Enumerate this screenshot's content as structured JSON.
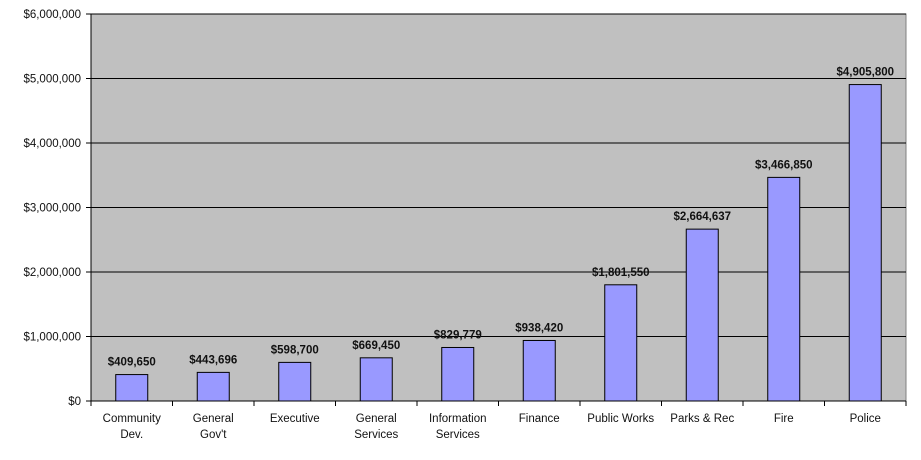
{
  "chart_data": {
    "type": "bar",
    "categories": [
      [
        "Community",
        "Dev."
      ],
      [
        "General",
        "Gov't"
      ],
      [
        "Executive"
      ],
      [
        "General",
        "Services"
      ],
      [
        "Information",
        "Services"
      ],
      [
        "Finance"
      ],
      [
        "Public Works"
      ],
      [
        "Parks & Rec"
      ],
      [
        "Fire"
      ],
      [
        "Police"
      ]
    ],
    "values": [
      409650,
      443696,
      598700,
      669450,
      829779,
      938420,
      1801550,
      2664637,
      3466850,
      4905800
    ],
    "data_labels": [
      "$409,650",
      "$443,696",
      "$598,700",
      "$669,450",
      "$829,779",
      "$938,420",
      "$1,801,550",
      "$2,664,637",
      "$3,466,850",
      "$4,905,800"
    ],
    "title": "",
    "xlabel": "",
    "ylabel": "",
    "ylim": [
      0,
      6000000
    ],
    "yticks": [
      0,
      1000000,
      2000000,
      3000000,
      4000000,
      5000000,
      6000000
    ],
    "ytick_labels": [
      "$0",
      "$1,000,000",
      "$2,000,000",
      "$3,000,000",
      "$4,000,000",
      "$5,000,000",
      "$6,000,000"
    ],
    "grid": true,
    "legend": "none",
    "colors": {
      "plot_background": "#c0c0c0",
      "bar_fill": "#9999ff",
      "bar_stroke": "#000000",
      "gridline": "#000000",
      "page_background": "#ffffff"
    }
  }
}
